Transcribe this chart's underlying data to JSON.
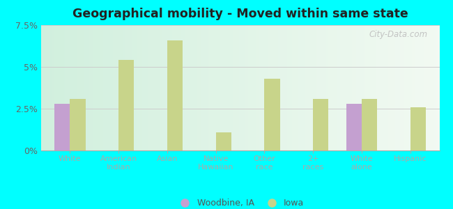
{
  "title": "Geographical mobility - Moved within same state",
  "categories": [
    "White",
    "American\nIndian",
    "Asian",
    "Native\nHawaiian",
    "Other\nrace",
    "2+\nraces",
    "White\nalone",
    "Hispanic"
  ],
  "woodbine_values": [
    2.8,
    0,
    0,
    0,
    0,
    0,
    2.8,
    0
  ],
  "iowa_values": [
    3.1,
    5.4,
    6.6,
    1.1,
    4.3,
    3.1,
    3.1,
    2.6
  ],
  "woodbine_color": "#c4a0d0",
  "iowa_color": "#c8d48a",
  "background_color": "#00ffff",
  "ylim": [
    0,
    7.5
  ],
  "yticks": [
    0,
    2.5,
    5.0,
    7.5
  ],
  "ytick_labels": [
    "0%",
    "2.5%",
    "5%",
    "7.5%"
  ],
  "bar_width": 0.32,
  "watermark": "City-Data.com",
  "legend_labels": [
    "Woodbine, IA",
    "Iowa"
  ]
}
